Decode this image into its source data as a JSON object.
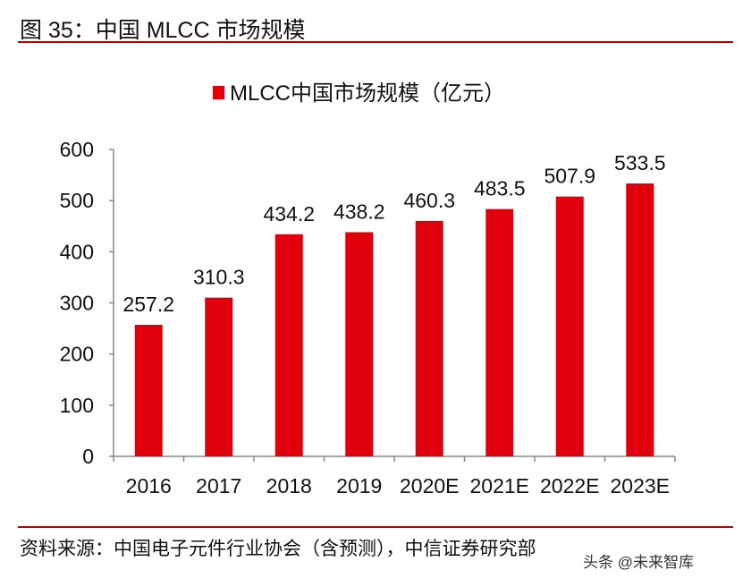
{
  "figure_title": "图 35：中国 MLCC 市场规模",
  "source": "资料来源：中国电子元件行业协会（含预测），中信证券研究部",
  "watermark": "头条 @未来智库",
  "colors": {
    "bar": "#e0000b",
    "rule": "#c00000"
  },
  "chart_data": {
    "type": "bar",
    "categories": [
      "2016",
      "2017",
      "2018",
      "2019",
      "2020E",
      "2021E",
      "2022E",
      "2023E"
    ],
    "series": [
      {
        "name": "MLCC中国市场规模（亿元）",
        "values": [
          257.2,
          310.3,
          434.2,
          438.2,
          460.3,
          483.5,
          507.9,
          533.5
        ]
      }
    ],
    "data_labels": [
      "257.2",
      "310.3",
      "434.2",
      "438.2",
      "460.3",
      "483.5",
      "507.9",
      "533.5"
    ],
    "yticks": [
      "0",
      "100",
      "200",
      "300",
      "400",
      "500",
      "600"
    ],
    "ylim": [
      0,
      600
    ],
    "grid": false,
    "legend": "top-center"
  }
}
